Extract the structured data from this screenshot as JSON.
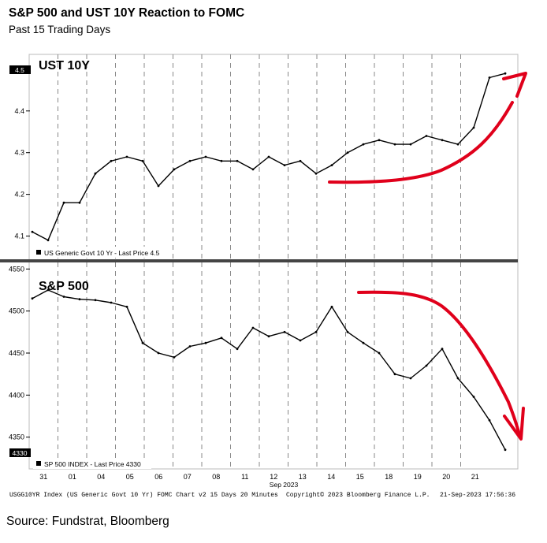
{
  "header": {
    "title": "S&P 500 and UST 10Y Reaction to FOMC",
    "subtitle": "Past 15 Trading Days"
  },
  "footer": {
    "left": "USGG10YR Index (US Generic Govt 10 Yr) FOMC Chart v2 15 Days 20 Minutes",
    "center": "Copyright© 2023 Bloomberg Finance L.P.",
    "right": "21-Sep-2023 17:56:36",
    "source": "Source: Fundstrat, Bloomberg"
  },
  "colors": {
    "series": "#000000",
    "annotation": "#e0001b",
    "grid": "#888888",
    "divider": "#444444"
  },
  "chart_data": [
    {
      "type": "line",
      "title": "UST 10Y",
      "legend": "US Generic Govt 10 Yr - Last Price 4.5",
      "last_price_label": "4.5",
      "yticks": [
        "4.1",
        "4.2",
        "4.3",
        "4.4",
        "4.5"
      ],
      "ylim": [
        4.05,
        4.53
      ],
      "x": [
        0,
        0.5,
        1,
        1.5,
        2,
        2.5,
        3,
        3.5,
        4,
        4.5,
        5,
        5.5,
        6,
        6.5,
        7,
        7.5,
        8,
        8.5,
        9,
        9.5,
        10,
        10.5,
        11,
        11.5,
        12,
        12.5,
        13,
        13.5,
        14,
        14.5,
        15
      ],
      "values": [
        4.11,
        4.09,
        4.18,
        4.18,
        4.25,
        4.28,
        4.29,
        4.28,
        4.22,
        4.26,
        4.28,
        4.29,
        4.28,
        4.28,
        4.26,
        4.29,
        4.27,
        4.28,
        4.25,
        4.27,
        4.3,
        4.32,
        4.33,
        4.32,
        4.32,
        4.34,
        4.33,
        4.32,
        4.36,
        4.48,
        4.49
      ],
      "annotation": "red arrow pointing up"
    },
    {
      "type": "line",
      "title": "S&P 500",
      "legend": "SP 500 INDEX - Last Price 4330",
      "last_price_label": "4330",
      "yticks": [
        "4350",
        "4400",
        "4450",
        "4500",
        "4550"
      ],
      "ylim": [
        4315,
        4555
      ],
      "x": [
        0,
        0.5,
        1,
        1.5,
        2,
        2.5,
        3,
        3.5,
        4,
        4.5,
        5,
        5.5,
        6,
        6.5,
        7,
        7.5,
        8,
        8.5,
        9,
        9.5,
        10,
        10.5,
        11,
        11.5,
        12,
        12.5,
        13,
        13.5,
        14,
        14.5,
        15
      ],
      "values": [
        4515,
        4525,
        4517,
        4514,
        4513,
        4510,
        4505,
        4462,
        4450,
        4445,
        4458,
        4462,
        4468,
        4455,
        4480,
        4470,
        4475,
        4465,
        4475,
        4505,
        4475,
        4462,
        4450,
        4425,
        4420,
        4435,
        4455,
        4420,
        4398,
        4370,
        4335
      ],
      "annotation": "red arrow pointing down"
    }
  ],
  "xaxis": {
    "labels": [
      "31",
      "01",
      "04",
      "05",
      "06",
      "07",
      "08",
      "11",
      "12",
      "13",
      "14",
      "15",
      "18",
      "19",
      "20",
      "21"
    ],
    "month_label": "Sep 2023"
  }
}
